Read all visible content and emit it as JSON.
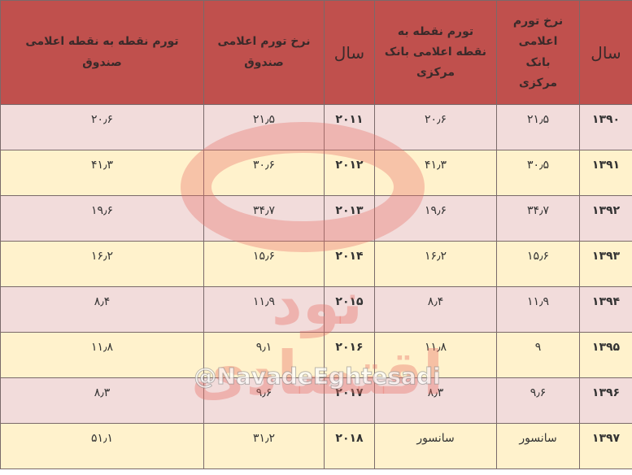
{
  "table": {
    "header": [
      "سال",
      "نرخ تورم اعلامی بانک مرکزی",
      "تورم نقطه به نقطه اعلامی بانک مرکزی",
      "سال",
      "نرخ تورم اعلامی صندوق",
      "تورم نقطه به نقطه اعلامی صندوق"
    ],
    "rows": [
      [
        "۱۳۹۰",
        "۲۱٫۵",
        "۲۰٫۶",
        "۲۰۱۱",
        "۲۱٫۵",
        "۲۰٫۶"
      ],
      [
        "۱۳۹۱",
        "۳۰٫۵",
        "۴۱٫۳",
        "۲۰۱۲",
        "۳۰٫۶",
        "۴۱٫۳"
      ],
      [
        "۱۳۹۲",
        "۳۴٫۷",
        "۱۹٫۶",
        "۲۰۱۳",
        "۳۴٫۷",
        "۱۹٫۶"
      ],
      [
        "۱۳۹۳",
        "۱۵٫۶",
        "۱۶٫۲",
        "۲۰۱۴",
        "۱۵٫۶",
        "۱۶٫۲"
      ],
      [
        "۱۳۹۴",
        "۱۱٫۹",
        "۸٫۴",
        "۲۰۱۵",
        "۱۱٫۹",
        "۸٫۴"
      ],
      [
        "۱۳۹۵",
        "۹",
        "۱۱٫۸",
        "۲۰۱۶",
        "۹٫۱",
        "۱۱٫۸"
      ],
      [
        "۱۳۹۶",
        "۹٫۶",
        "۸٫۳",
        "۲۰۱۷",
        "۹٫۶",
        "۸٫۳"
      ],
      [
        "۱۳۹۷",
        "سانسور",
        "سانسور",
        "۲۰۱۸",
        "۳۱٫۲",
        "۵۱٫۱"
      ]
    ]
  },
  "watermark": {
    "logo_text": "نود اقتصادی",
    "handle": "@NavadeEghtesadi"
  }
}
